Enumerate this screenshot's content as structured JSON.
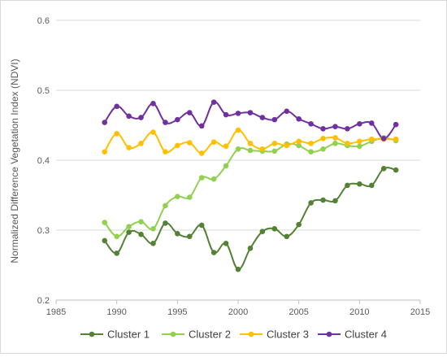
{
  "chart_data": {
    "type": "line",
    "title": "",
    "xlabel": "",
    "ylabel": "Normalized Difference Vegetation Index (NDVI)",
    "xlim": [
      1985,
      2015
    ],
    "ylim": [
      0.2,
      0.6
    ],
    "xticks": [
      1985,
      1990,
      1995,
      2000,
      2005,
      2010,
      2015
    ],
    "yticks": [
      0.2,
      0.3,
      0.4,
      0.5,
      0.6
    ],
    "xtick_labels": [
      "1985",
      "1990",
      "1995",
      "2000",
      "2005",
      "2010",
      "2015"
    ],
    "ytick_labels": [
      "0.2",
      "0.3",
      "0.4",
      "0.5",
      "0.6"
    ],
    "grid": "horizontal",
    "legend_position": "bottom",
    "x": [
      1989,
      1990,
      1991,
      1992,
      1993,
      1994,
      1995,
      1996,
      1997,
      1998,
      1999,
      2000,
      2001,
      2002,
      2003,
      2004,
      2005,
      2006,
      2007,
      2008,
      2009,
      2010,
      2011,
      2012,
      2013
    ],
    "series": [
      {
        "name": "Cluster 1",
        "color": "#548235",
        "values": [
          0.285,
          0.267,
          0.297,
          0.294,
          0.281,
          0.31,
          0.295,
          0.291,
          0.307,
          0.268,
          0.281,
          0.244,
          0.274,
          0.298,
          0.302,
          0.291,
          0.308,
          0.339,
          0.343,
          0.342,
          0.364,
          0.366,
          0.364,
          0.388,
          0.386
        ]
      },
      {
        "name": "Cluster 2",
        "color": "#92d050",
        "values": [
          0.311,
          0.291,
          0.305,
          0.312,
          0.302,
          0.335,
          0.348,
          0.347,
          0.375,
          0.373,
          0.392,
          0.416,
          0.414,
          0.413,
          0.413,
          0.423,
          0.421,
          0.412,
          0.416,
          0.424,
          0.421,
          0.42,
          0.427,
          0.432,
          0.428
        ]
      },
      {
        "name": "Cluster 3",
        "color": "#ffc000",
        "values": [
          0.412,
          0.438,
          0.418,
          0.424,
          0.44,
          0.412,
          0.421,
          0.425,
          0.41,
          0.426,
          0.42,
          0.443,
          0.424,
          0.416,
          0.424,
          0.421,
          0.427,
          0.424,
          0.431,
          0.432,
          0.424,
          0.427,
          0.43,
          0.43,
          0.43
        ]
      },
      {
        "name": "Cluster 4",
        "color": "#7030a0",
        "values": [
          0.454,
          0.477,
          0.463,
          0.461,
          0.481,
          0.454,
          0.458,
          0.468,
          0.449,
          0.483,
          0.465,
          0.467,
          0.468,
          0.461,
          0.458,
          0.47,
          0.459,
          0.452,
          0.445,
          0.448,
          0.445,
          0.452,
          0.453,
          0.431,
          0.451
        ]
      }
    ]
  }
}
